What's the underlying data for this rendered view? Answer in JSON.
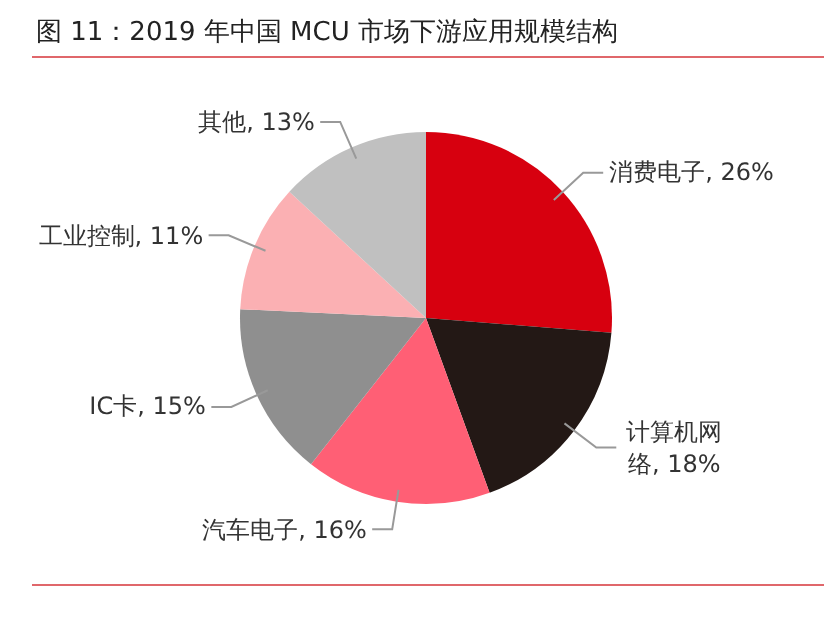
{
  "chart_data": {
    "type": "pie",
    "title": "图 11：2019 年中国 MCU 市场下游应用规模结构",
    "categories": [
      "消费电子",
      "计算机网络",
      "汽车电子",
      "IC卡",
      "工业控制",
      "其他"
    ],
    "values": [
      26,
      18,
      16,
      15,
      11,
      13
    ],
    "value_labels": [
      "26%",
      "18%",
      "16%",
      "15%",
      "11%",
      "13%"
    ],
    "colors": [
      "#d7000f",
      "#231815",
      "#ff5f75",
      "#8f8f8f",
      "#fbb0b3",
      "#c0c0c0"
    ],
    "legend": false
  }
}
